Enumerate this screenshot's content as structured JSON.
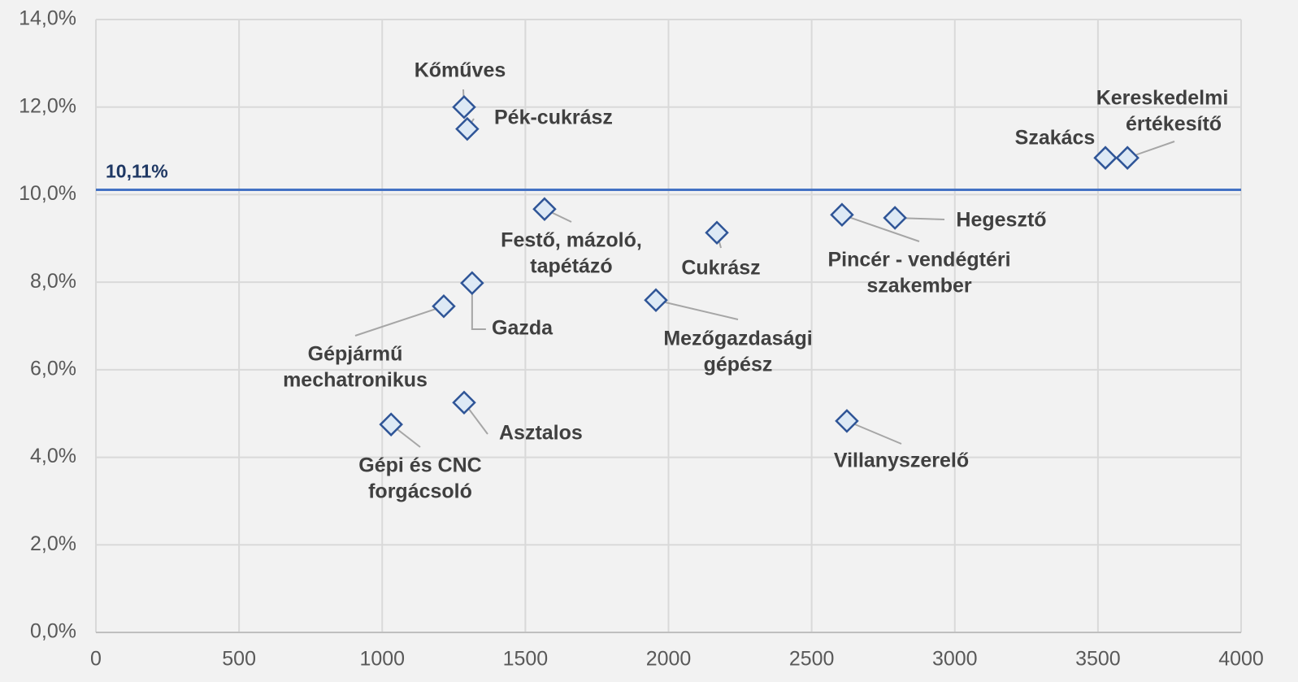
{
  "chart_data": {
    "type": "scatter",
    "x": [
      1286,
      1297,
      1567,
      2169,
      1314,
      1215,
      1956,
      1286,
      1031,
      2623,
      2606,
      2791,
      3526,
      3603
    ],
    "values": [
      12.0,
      11.5,
      9.67,
      9.13,
      7.98,
      7.45,
      7.59,
      5.25,
      4.75,
      4.83,
      9.54,
      9.47,
      10.84,
      10.84
    ],
    "point_labels": [
      [
        "Kőműves"
      ],
      [
        "Pék-cukrász"
      ],
      [
        "Festő, mázoló,",
        "tapétázó"
      ],
      [
        "Cukrász"
      ],
      [
        "Gazda"
      ],
      [
        "Gépjármű",
        "mechatronikus"
      ],
      [
        "Mezőgazdasági",
        "gépész"
      ],
      [
        "Asztalos"
      ],
      [
        "Gépi és CNC",
        "forgácsoló"
      ],
      [
        "Villanyszerelő"
      ],
      [
        "Pincér - vendégtéri",
        "szakember"
      ],
      [
        "Hegesztő"
      ],
      [
        "Szakács"
      ],
      [
        "Kereskedelmi",
        "értékesítő"
      ]
    ],
    "marker_color": "#2f5597",
    "marker_fill": "#dde9f5",
    "reference_line": {
      "value": 10.11,
      "label": "10,11%",
      "color": "#4472c4"
    },
    "xlim": [
      0,
      4000
    ],
    "xticks": [
      0,
      500,
      1000,
      1500,
      2000,
      2500,
      3000,
      3500,
      4000
    ],
    "ylim": [
      0,
      14
    ],
    "yticks": [
      {
        "value": 0,
        "label": "0,0%"
      },
      {
        "value": 2,
        "label": "2,0%"
      },
      {
        "value": 4,
        "label": "4,0%"
      },
      {
        "value": 6,
        "label": "6,0%"
      },
      {
        "value": 8,
        "label": "8,0%"
      },
      {
        "value": 10,
        "label": "10,0%"
      },
      {
        "value": 12,
        "label": "12,0%"
      },
      {
        "value": 14,
        "label": "14,0%"
      }
    ],
    "grid": true
  }
}
